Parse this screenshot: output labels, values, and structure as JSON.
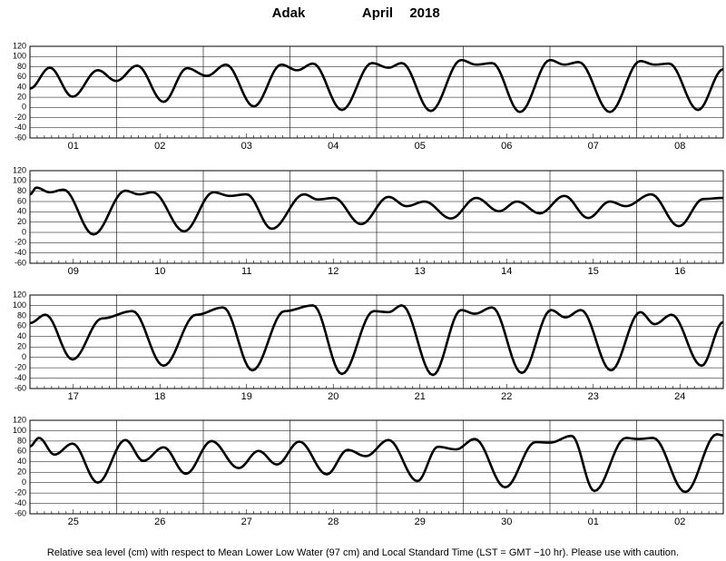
{
  "header": {
    "station": "Adak",
    "month": "April",
    "year": "2018"
  },
  "footer": "Relative sea level (cm) with respect to Mean Lower Low Water (97 cm) and Local Standard Time (LST = GMT −10 hr). Please use with caution.",
  "chart_data": [
    {
      "type": "line",
      "color": "#000000",
      "grid": true,
      "xlim": [
        0,
        192
      ],
      "ylim": [
        -60,
        120
      ],
      "yticks": [
        -60,
        -40,
        -20,
        0,
        20,
        40,
        60,
        80,
        100,
        120
      ],
      "categories": [
        "01",
        "02",
        "03",
        "04",
        "05",
        "06",
        "07",
        "08"
      ],
      "x": [
        0,
        5.5,
        11.8,
        18.8,
        23.9,
        29.7,
        37,
        43.5,
        49,
        54.3,
        62,
        69.6,
        74,
        78.4,
        86.4,
        94.7,
        99.3,
        103,
        111,
        119.4,
        123.6,
        128,
        135.7,
        144,
        148,
        152,
        160.6,
        169,
        173,
        177,
        185,
        192
      ],
      "values": [
        37,
        78,
        21,
        73,
        52,
        82,
        11,
        77,
        62,
        84,
        2,
        84,
        73,
        86,
        -5,
        87,
        78,
        87,
        -7,
        93,
        84,
        87,
        -9,
        93,
        84,
        89,
        -9,
        91,
        84,
        86,
        -5,
        75
      ]
    },
    {
      "type": "line",
      "color": "#000000",
      "grid": true,
      "xlim": [
        0,
        192
      ],
      "ylim": [
        -60,
        120
      ],
      "yticks": [
        -60,
        -40,
        -20,
        0,
        20,
        40,
        60,
        80,
        100,
        120
      ],
      "categories": [
        "09",
        "10",
        "11",
        "12",
        "13",
        "14",
        "15",
        "16"
      ],
      "x": [
        0,
        1.8,
        5.5,
        9.3,
        17.6,
        26.4,
        30.2,
        34,
        42.7,
        50.8,
        55.3,
        60,
        67,
        75.9,
        79.7,
        84.2,
        91.7,
        99.3,
        104.3,
        109.3,
        116.6,
        123.6,
        129.9,
        134.9,
        141.2,
        148,
        154.6,
        160.6,
        165,
        172,
        179.7,
        186.5,
        192
      ],
      "values": [
        74,
        87,
        78,
        83,
        -4,
        81,
        74,
        78,
        2,
        78,
        71,
        74,
        7,
        74,
        64,
        67,
        16,
        69,
        51,
        60,
        27,
        67,
        41,
        60,
        37,
        71,
        28,
        60,
        51,
        74,
        12,
        65,
        67
      ]
    },
    {
      "type": "line",
      "color": "#000000",
      "grid": true,
      "xlim": [
        0,
        192
      ],
      "ylim": [
        -60,
        120
      ],
      "yticks": [
        -60,
        -40,
        -20,
        0,
        20,
        40,
        60,
        80,
        100,
        120
      ],
      "categories": [
        "17",
        "18",
        "19",
        "20",
        "21",
        "22",
        "23",
        "24"
      ],
      "x": [
        0,
        4.3,
        11.8,
        20,
        28.4,
        37,
        46,
        53.5,
        61.6,
        70.5,
        78.4,
        86.4,
        95.2,
        99.3,
        103,
        111.6,
        119.4,
        123.2,
        128,
        136.2,
        144.3,
        148.3,
        152.6,
        160.9,
        169,
        173,
        177.7,
        186,
        192
      ],
      "values": [
        66,
        82,
        -4,
        75,
        89,
        -16,
        82,
        96,
        -25,
        89,
        100,
        -32,
        89,
        87,
        100,
        -34,
        91,
        84,
        96,
        -30,
        91,
        77,
        91,
        -25,
        87,
        64,
        82,
        -16,
        68
      ]
    },
    {
      "type": "line",
      "color": "#000000",
      "grid": true,
      "xlim": [
        0,
        192
      ],
      "ylim": [
        -60,
        120
      ],
      "yticks": [
        -60,
        -40,
        -20,
        0,
        20,
        40,
        60,
        80,
        100,
        120
      ],
      "categories": [
        "25",
        "26",
        "27",
        "28",
        "29",
        "30",
        "01",
        "02"
      ],
      "x": [
        0,
        2.5,
        6.8,
        11.8,
        18.8,
        26.4,
        31.4,
        37,
        43.2,
        50.3,
        57.8,
        63.3,
        68.4,
        74.6,
        82.2,
        88,
        93,
        99.3,
        107.3,
        113,
        118,
        123.2,
        131.6,
        140,
        144,
        150,
        156.3,
        165,
        168.4,
        172.6,
        181.5,
        190.2,
        192
      ],
      "values": [
        70,
        86,
        54,
        75,
        0,
        82,
        42,
        68,
        17,
        80,
        28,
        61,
        35,
        79,
        16,
        63,
        51,
        82,
        3,
        69,
        64,
        84,
        -9,
        78,
        77,
        90,
        -16,
        86,
        84,
        86,
        -18,
        93,
        91
      ]
    }
  ]
}
